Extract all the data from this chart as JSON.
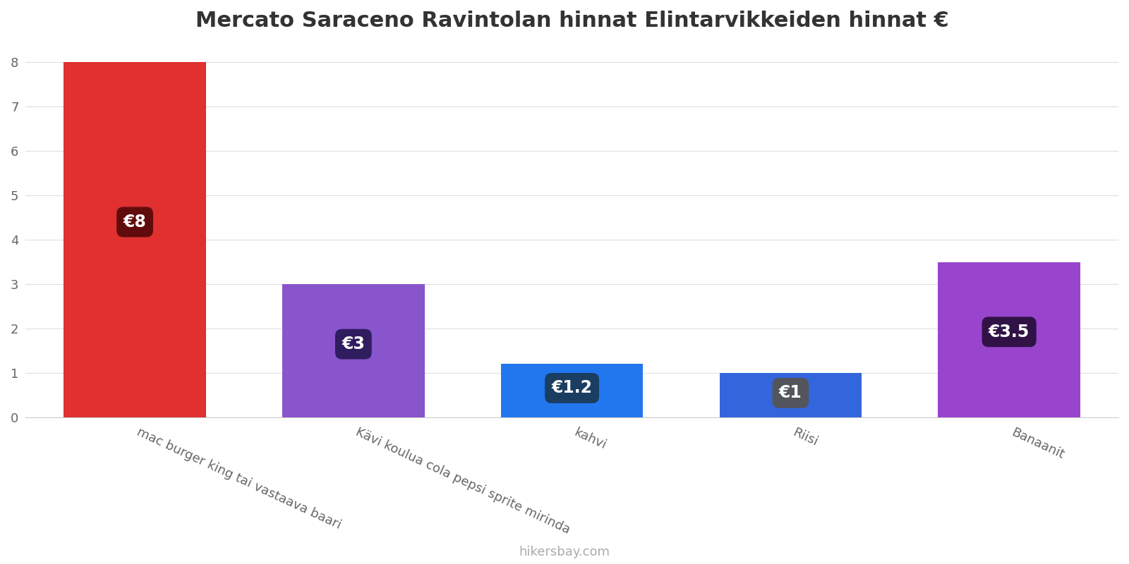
{
  "title": "Mercato Saraceno Ravintolan hinnat Elintarvikkeiden hinnat €",
  "categories": [
    "mac burger king tai vastaava baari",
    "Kävi koulua cola pepsi sprite mirinda",
    "kahvi",
    "Riisi",
    "Banaanit"
  ],
  "values": [
    8,
    3,
    1.2,
    1,
    3.5
  ],
  "bar_colors": [
    "#e03030",
    "#8855cc",
    "#2277ee",
    "#3366dd",
    "#9944cc"
  ],
  "label_texts": [
    "€8",
    "€3",
    "€1.2",
    "€1",
    "€3.5"
  ],
  "label_box_colors": [
    "#5a0a0a",
    "#2a1a5a",
    "#1a3a5a",
    "#555555",
    "#2a1040"
  ],
  "ylim": [
    0,
    8.4
  ],
  "yticks": [
    0,
    1,
    2,
    3,
    4,
    5,
    6,
    7,
    8
  ],
  "footer_text": "hikersbay.com",
  "background_color": "#ffffff",
  "grid_color": "#e0e0e0",
  "title_fontsize": 22,
  "tick_fontsize": 13,
  "label_fontsize": 17,
  "footer_fontsize": 13
}
